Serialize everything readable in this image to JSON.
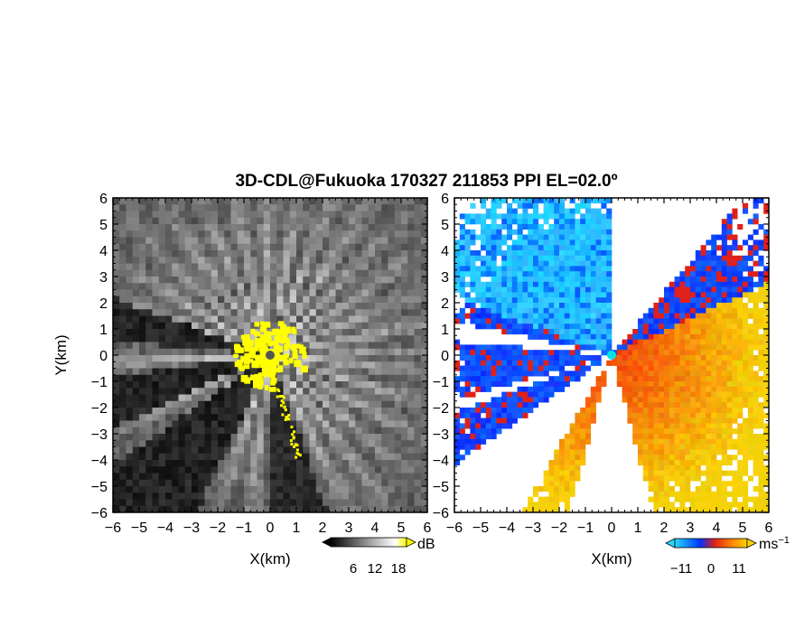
{
  "title": "3D-CDL@Fukuoka 170327 211853 PPI EL=02.0º",
  "chart_data": [
    {
      "type": "heatmap",
      "panel": "reflectivity",
      "xlabel": "X(km)",
      "ylabel": "Y(km)",
      "xlim": [
        -6,
        6
      ],
      "ylim": [
        -6,
        6
      ],
      "xticks": [
        "-6",
        "-5",
        "-4",
        "-3",
        "-2",
        "-1",
        "0",
        "1",
        "2",
        "3",
        "4",
        "5",
        "6"
      ],
      "yticks": [
        "6",
        "5",
        "4",
        "3",
        "2",
        "1",
        "0",
        "-1",
        "-2",
        "-3",
        "-4",
        "-5",
        "-6"
      ],
      "colorbar": {
        "unit": "dB",
        "tick_labels": [
          "6",
          "12",
          "18"
        ],
        "colors": [
          "#000000",
          "#ffffff",
          "#ffff00"
        ]
      },
      "radar_site": [
        0,
        0
      ],
      "site_color": "#555555"
    },
    {
      "type": "heatmap",
      "panel": "radial-velocity",
      "xlabel": "X(km)",
      "ylabel": "",
      "xlim": [
        -6,
        6
      ],
      "ylim": [
        -6,
        6
      ],
      "xticks": [
        "-6",
        "-5",
        "-4",
        "-3",
        "-2",
        "-1",
        "0",
        "1",
        "2",
        "3",
        "4",
        "5",
        "6"
      ],
      "yticks": [
        "6",
        "5",
        "4",
        "3",
        "2",
        "1",
        "0",
        "-1",
        "-2",
        "-3",
        "-4",
        "-5",
        "-6"
      ],
      "colorbar": {
        "unit": "ms",
        "unit_superscript": "−1",
        "tick_labels": [
          "−11",
          "0",
          "11"
        ],
        "colors": [
          "#29d9ff",
          "#0033ff",
          "#e0201a",
          "#ff8a00",
          "#ffd200"
        ]
      },
      "radar_site": [
        0,
        0
      ],
      "site_color": "#00e5e5"
    }
  ]
}
